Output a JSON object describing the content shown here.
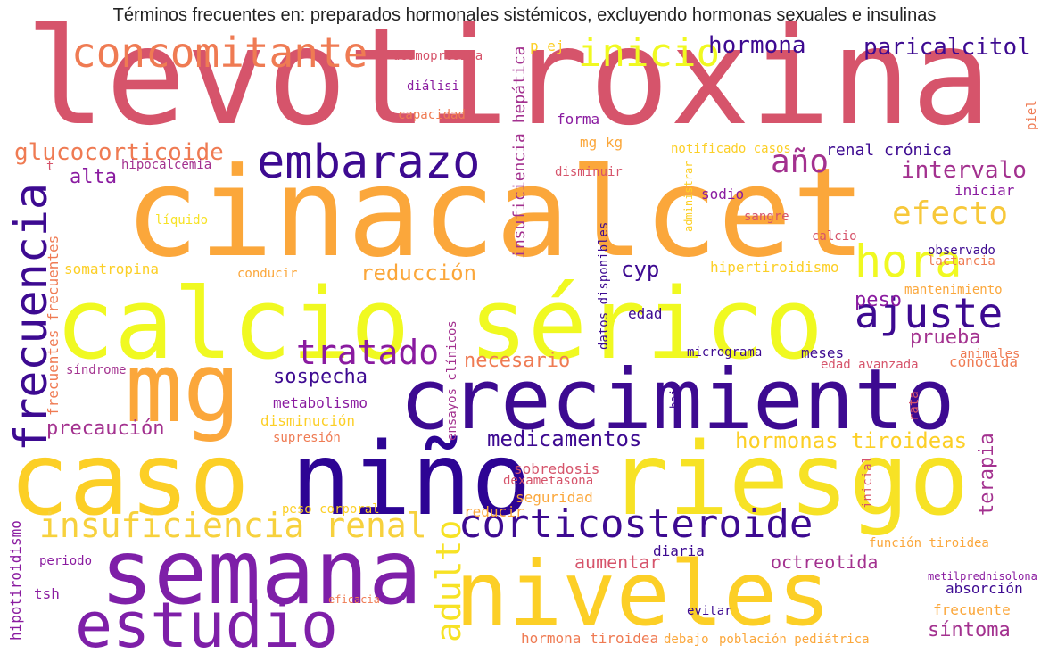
{
  "title": "Términos frecuentes en: preparados hormonales sistémicos, excluyendo hormonas sexuales e insulinas",
  "palette": {
    "dark_purple": "#3d0a91",
    "purple": "#7e1fa8",
    "magenta": "#a3318f",
    "pink": "#d6546b",
    "salmon": "#ef7b53",
    "orange": "#fba73b",
    "gold": "#fccf26",
    "yellow": "#f0f921"
  },
  "words": [
    {
      "text": "levotiroxina",
      "color": "#d6546b"
    },
    {
      "text": "cinacalcet",
      "color": "#fba73b"
    },
    {
      "text": "calcio sérico",
      "color": "#f0f921"
    },
    {
      "text": "crecimiento",
      "color": "#3d0a91"
    },
    {
      "text": "mg",
      "color": "#fba73b"
    },
    {
      "text": "caso",
      "color": "#fccf26"
    },
    {
      "text": "niño",
      "color": "#2d0494"
    },
    {
      "text": "riesgo",
      "color": "#f7e225"
    },
    {
      "text": "semana",
      "color": "#7e1fa8"
    },
    {
      "text": "niveles",
      "color": "#fccf26"
    },
    {
      "text": "estudio",
      "color": "#7e1fa8"
    },
    {
      "text": "concomitante",
      "color": "#ef7b53"
    },
    {
      "text": "embarazo",
      "color": "#3d0a91"
    },
    {
      "text": "frecuencia",
      "color": "#3d0a91"
    },
    {
      "text": "hora",
      "color": "#f0f921"
    },
    {
      "text": "ajuste",
      "color": "#3d0a91"
    },
    {
      "text": "corticosteroide",
      "color": "#3d0a91"
    },
    {
      "text": "insuficiencia renal",
      "color": "#f7d13d"
    },
    {
      "text": "inicio",
      "color": "#f0f921"
    },
    {
      "text": "efecto",
      "color": "#f7c83a"
    },
    {
      "text": "tratado",
      "color": "#8a1ba0"
    },
    {
      "text": "año",
      "color": "#a3318f"
    },
    {
      "text": "adulto",
      "color": "#f7e225"
    },
    {
      "text": "hormona",
      "color": "#3d0a91"
    },
    {
      "text": "paricalcitol",
      "color": "#3d0a91"
    },
    {
      "text": "glucocorticoide",
      "color": "#ef7b53"
    },
    {
      "text": "intervalo",
      "color": "#a3318f"
    },
    {
      "text": "reducción",
      "color": "#fba73b"
    },
    {
      "text": "medicamentos",
      "color": "#3d0a91"
    },
    {
      "text": "hormonas tiroideas",
      "color": "#fccf26"
    },
    {
      "text": "necesario",
      "color": "#ef7b53"
    },
    {
      "text": "prueba",
      "color": "#a3318f"
    },
    {
      "text": "precaución",
      "color": "#a3318f"
    },
    {
      "text": "sospecha",
      "color": "#3d0a91"
    },
    {
      "text": "cyp",
      "color": "#3d0a91"
    },
    {
      "text": "peso",
      "color": "#8a1ba0"
    },
    {
      "text": "terapia",
      "color": "#a3318f"
    },
    {
      "text": "aumentar",
      "color": "#d6546b"
    },
    {
      "text": "octreotida",
      "color": "#a3318f"
    },
    {
      "text": "síntoma",
      "color": "#a3318f"
    },
    {
      "text": "alta",
      "color": "#8a1ba0"
    },
    {
      "text": "renal crónica",
      "color": "#3d0a91"
    },
    {
      "text": "insuficiencia hepática",
      "color": "#a3318f"
    },
    {
      "text": "somatropina",
      "color": "#fccf26"
    },
    {
      "text": "hipertiroidismo",
      "color": "#fccf26"
    },
    {
      "text": "metabolismo",
      "color": "#8a1ba0"
    },
    {
      "text": "disminución",
      "color": "#fccf26"
    },
    {
      "text": "hipotiroidismo",
      "color": "#8a1ba0"
    },
    {
      "text": "sobredosis",
      "color": "#d6546b"
    },
    {
      "text": "seguridad",
      "color": "#fba73b"
    },
    {
      "text": "conocida",
      "color": "#ef7b53"
    },
    {
      "text": "meses",
      "color": "#3d0a91"
    },
    {
      "text": "sodio",
      "color": "#8a1ba0"
    },
    {
      "text": "iniciar",
      "color": "#8a1ba0"
    },
    {
      "text": "forma",
      "color": "#8a1ba0"
    },
    {
      "text": "mg kg",
      "color": "#fba73b"
    },
    {
      "text": "p ej",
      "color": "#fccf26"
    },
    {
      "text": "edad",
      "color": "#3d0a91"
    },
    {
      "text": "absorción",
      "color": "#3d0a91"
    },
    {
      "text": "frecuente",
      "color": "#fba73b"
    },
    {
      "text": "diaria",
      "color": "#3d0a91"
    },
    {
      "text": "reducir",
      "color": "#fba73b"
    },
    {
      "text": "hormona tiroidea",
      "color": "#ef7b53"
    },
    {
      "text": "tsh",
      "color": "#8a1ba0"
    },
    {
      "text": "frecuentes frecuentes",
      "color": "#ef7b53"
    },
    {
      "text": "datos disponibles",
      "color": "#3d0a91"
    },
    {
      "text": "ensayos clínicos",
      "color": "#a3318f"
    },
    {
      "text": "desmopresina",
      "color": "#d6546b"
    },
    {
      "text": "diálisi",
      "color": "#8a1ba0"
    },
    {
      "text": "capacidad",
      "color": "#ef7b53"
    },
    {
      "text": "notificado casos",
      "color": "#fccf26"
    },
    {
      "text": "disminuir",
      "color": "#d6546b"
    },
    {
      "text": "administrar",
      "color": "#fccf26"
    },
    {
      "text": "hipocalcemia",
      "color": "#a3318f"
    },
    {
      "text": "líquido",
      "color": "#f7e225"
    },
    {
      "text": "sangre",
      "color": "#d6546b"
    },
    {
      "text": "calcio",
      "color": "#d6546b"
    },
    {
      "text": "lactancia",
      "color": "#ef7b53"
    },
    {
      "text": "observado",
      "color": "#3d0a91"
    },
    {
      "text": "mantenimiento",
      "color": "#fba73b"
    },
    {
      "text": "conducir",
      "color": "#fba73b"
    },
    {
      "text": "micrograma",
      "color": "#3d0a91"
    },
    {
      "text": "edad avanzada",
      "color": "#d6546b"
    },
    {
      "text": "animales",
      "color": "#ef7b53"
    },
    {
      "text": "síndrome",
      "color": "#a3318f"
    },
    {
      "text": "supresión",
      "color": "#ef7b53"
    },
    {
      "text": "dexametasona",
      "color": "#d6546b"
    },
    {
      "text": "baja",
      "color": "#3d0a91"
    },
    {
      "text": "rata",
      "color": "#d6546b"
    },
    {
      "text": "inicial",
      "color": "#d6546b"
    },
    {
      "text": "peso corporal",
      "color": "#fccf26"
    },
    {
      "text": "función tiroidea",
      "color": "#fba73b"
    },
    {
      "text": "metilprednisolona",
      "color": "#8a1ba0"
    },
    {
      "text": "periodo",
      "color": "#8a1ba0"
    },
    {
      "text": "eficacia",
      "color": "#ef7b53"
    },
    {
      "text": "evitar",
      "color": "#3d0a91"
    },
    {
      "text": "debajo",
      "color": "#fba73b"
    },
    {
      "text": "población pediátrica",
      "color": "#fba73b"
    },
    {
      "text": "piel",
      "color": "#ef7b53"
    },
    {
      "text": "t",
      "color": "#d6546b"
    }
  ]
}
